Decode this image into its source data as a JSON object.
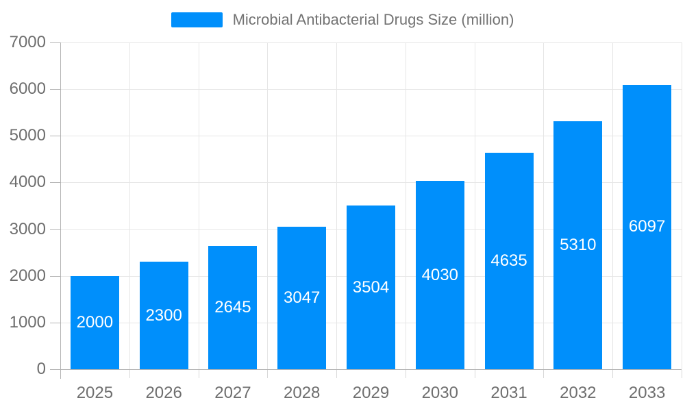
{
  "legend": {
    "label": "Microbial Antibacterial Drugs Size (million)"
  },
  "colors": {
    "bar": "#008FFB",
    "grid": "#e6e6e6",
    "axis": "#b3b3b3",
    "boundary_tick": "#d9d9d9",
    "axis_text": "#6e6e6e",
    "legend_text": "#737373",
    "value_text": "#ffffff"
  },
  "chart_data": {
    "type": "bar",
    "title": "Microbial Antibacterial Drugs Size (million)",
    "series_name": "Microbial Antibacterial Drugs Size (million)",
    "categories": [
      "2025",
      "2026",
      "2027",
      "2028",
      "2029",
      "2030",
      "2031",
      "2032",
      "2033"
    ],
    "values": [
      2000,
      2300,
      2645,
      3047,
      3504,
      4030,
      4635,
      5310,
      6097
    ],
    "value_labels": [
      "2000",
      "2300",
      "2645",
      "3047",
      "3504",
      "4030",
      "4635",
      "5310",
      "6097"
    ],
    "xlabel": "",
    "ylabel": "",
    "ylim": [
      0,
      7000
    ],
    "y_ticks": [
      0,
      1000,
      2000,
      3000,
      4000,
      5000,
      6000,
      7000
    ],
    "grid": true,
    "legend_position": "top",
    "value_label_position": "inside-center"
  }
}
